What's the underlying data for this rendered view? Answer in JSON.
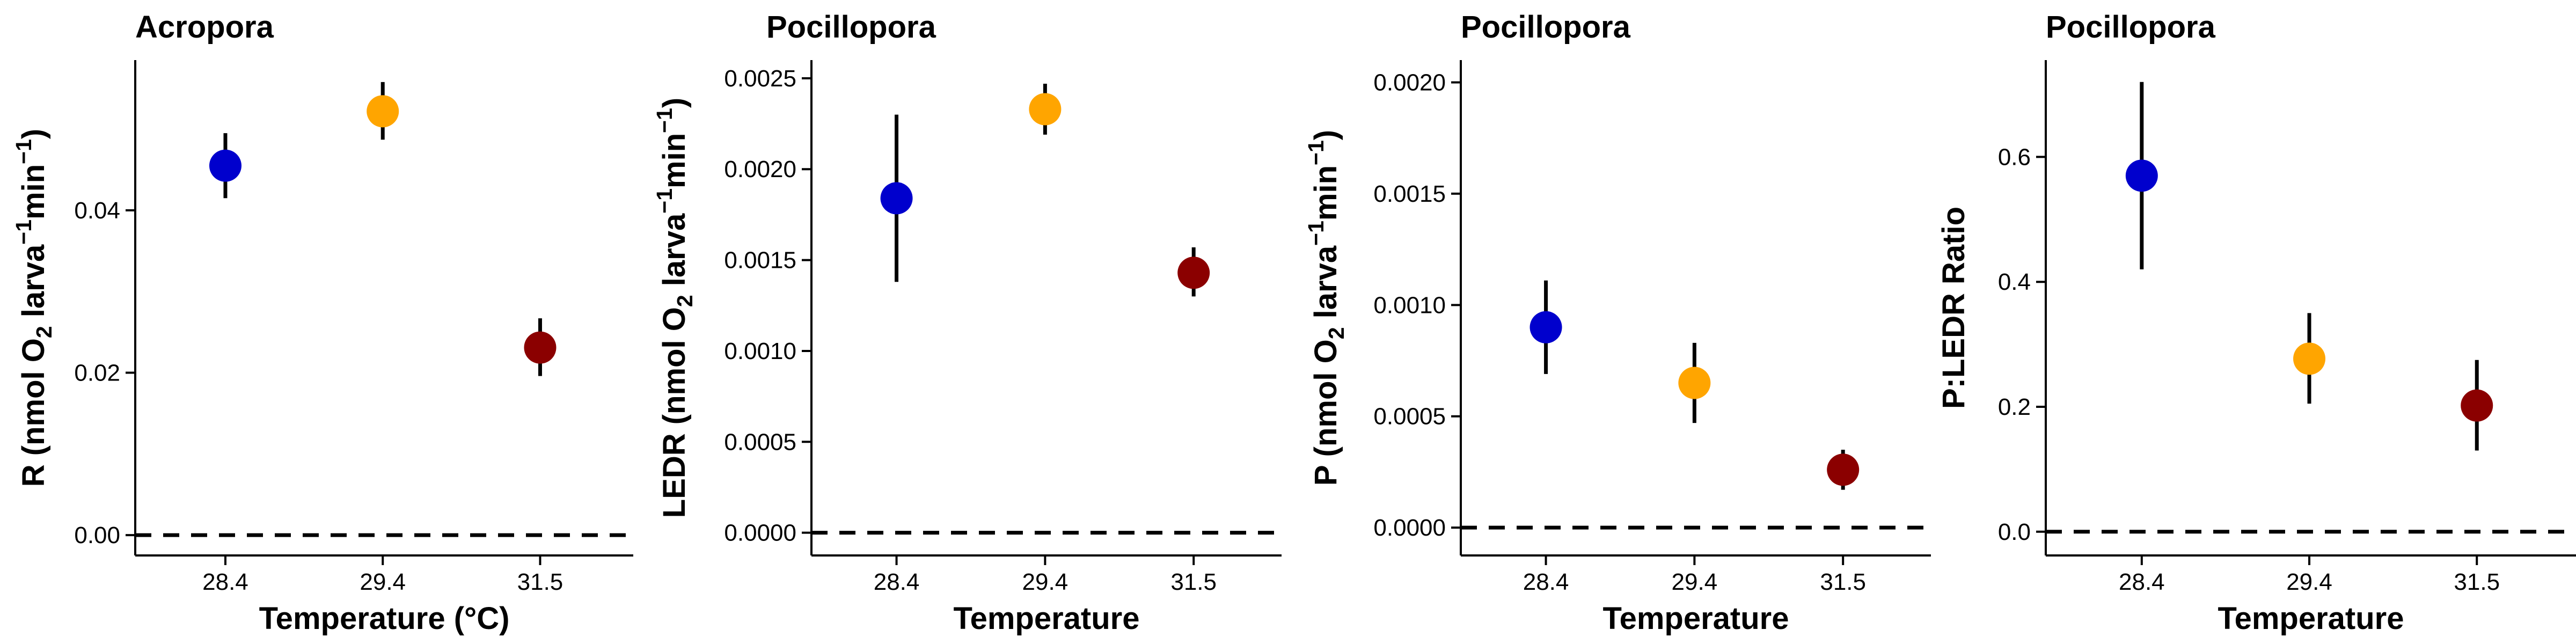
{
  "chart_data": [
    {
      "type": "scatter",
      "title": "Acropora",
      "xlabel": "Temperature (°C)",
      "ylabel": "R (nmol O₂ larva⁻¹min⁻¹)",
      "ylabel_parts": [
        {
          "t": "R (nmol O"
        },
        {
          "t": "2",
          "s": "sub"
        },
        {
          "t": " larva"
        },
        {
          "t": "−1",
          "s": "sup"
        },
        {
          "t": "min"
        },
        {
          "t": "−1",
          "s": "sup"
        },
        {
          "t": ")"
        }
      ],
      "categories": [
        "28.4",
        "29.4",
        "31.5"
      ],
      "values": [
        0.0455,
        0.0522,
        0.0231
      ],
      "err_low": [
        0.0415,
        0.0487,
        0.0196
      ],
      "err_high": [
        0.0495,
        0.0558,
        0.0267
      ],
      "colors": [
        "#0000CD",
        "#FFA500",
        "#8B0000"
      ],
      "ylim": [
        -0.0025,
        0.0585
      ],
      "yticks": [
        0,
        0.02,
        0.04
      ],
      "ytick_labels": [
        "0.00",
        "0.02",
        "0.04"
      ],
      "hline": 0,
      "grid": false
    },
    {
      "type": "scatter",
      "title": "Pocillopora",
      "xlabel": "Temperature",
      "ylabel": "LEDR (nmol O₂ larva⁻¹min⁻¹)",
      "ylabel_parts": [
        {
          "t": "LEDR (nmol O"
        },
        {
          "t": "2",
          "s": "sub"
        },
        {
          "t": " larva"
        },
        {
          "t": "−1",
          "s": "sup"
        },
        {
          "t": "min"
        },
        {
          "t": "−1",
          "s": "sup"
        },
        {
          "t": ")"
        }
      ],
      "categories": [
        "28.4",
        "29.4",
        "31.5"
      ],
      "values": [
        0.00184,
        0.00233,
        0.00143
      ],
      "err_low": [
        0.00138,
        0.00219,
        0.0013
      ],
      "err_high": [
        0.0023,
        0.00247,
        0.00157
      ],
      "colors": [
        "#0000CD",
        "#FFA500",
        "#8B0000"
      ],
      "ylim": [
        -0.000125,
        0.0026
      ],
      "yticks": [
        0,
        0.0005,
        0.001,
        0.0015,
        0.002,
        0.0025
      ],
      "ytick_labels": [
        "0.0000",
        "0.0005",
        "0.0010",
        "0.0015",
        "0.0020",
        "0.0025"
      ],
      "hline": 0,
      "grid": false
    },
    {
      "type": "scatter",
      "title": "Pocillopora",
      "xlabel": "Temperature",
      "ylabel": "P (nmol O₂ larva⁻¹min⁻¹)",
      "ylabel_parts": [
        {
          "t": "P (nmol O"
        },
        {
          "t": "2",
          "s": "sub"
        },
        {
          "t": " larva"
        },
        {
          "t": "−1",
          "s": "sup"
        },
        {
          "t": "min"
        },
        {
          "t": "−1",
          "s": "sup"
        },
        {
          "t": ")"
        }
      ],
      "categories": [
        "28.4",
        "29.4",
        "31.5"
      ],
      "values": [
        0.0009,
        0.00065,
        0.00026
      ],
      "err_low": [
        0.00069,
        0.00047,
        0.00017
      ],
      "err_high": [
        0.00111,
        0.00083,
        0.00035
      ],
      "colors": [
        "#0000CD",
        "#FFA500",
        "#8B0000"
      ],
      "ylim": [
        -0.000125,
        0.0021
      ],
      "yticks": [
        0,
        0.0005,
        0.001,
        0.0015,
        0.002
      ],
      "ytick_labels": [
        "0.0000",
        "0.0005",
        "0.0010",
        "0.0015",
        "0.0020"
      ],
      "hline": 0,
      "grid": false
    },
    {
      "type": "scatter",
      "title": "Pocillopora",
      "xlabel": "Temperature",
      "ylabel": "P:LEDR Ratio",
      "ylabel_parts": [
        {
          "t": "P:LEDR Ratio"
        }
      ],
      "categories": [
        "28.4",
        "29.4",
        "31.5"
      ],
      "values": [
        0.57,
        0.277,
        0.202
      ],
      "err_low": [
        0.42,
        0.205,
        0.13
      ],
      "err_high": [
        0.72,
        0.35,
        0.275
      ],
      "colors": [
        "#0000CD",
        "#FFA500",
        "#8B0000"
      ],
      "ylim": [
        -0.038,
        0.755
      ],
      "yticks": [
        0,
        0.2,
        0.4,
        0.6
      ],
      "ytick_labels": [
        "0.0",
        "0.2",
        "0.4",
        "0.6"
      ],
      "hline": 0,
      "grid": false
    }
  ]
}
